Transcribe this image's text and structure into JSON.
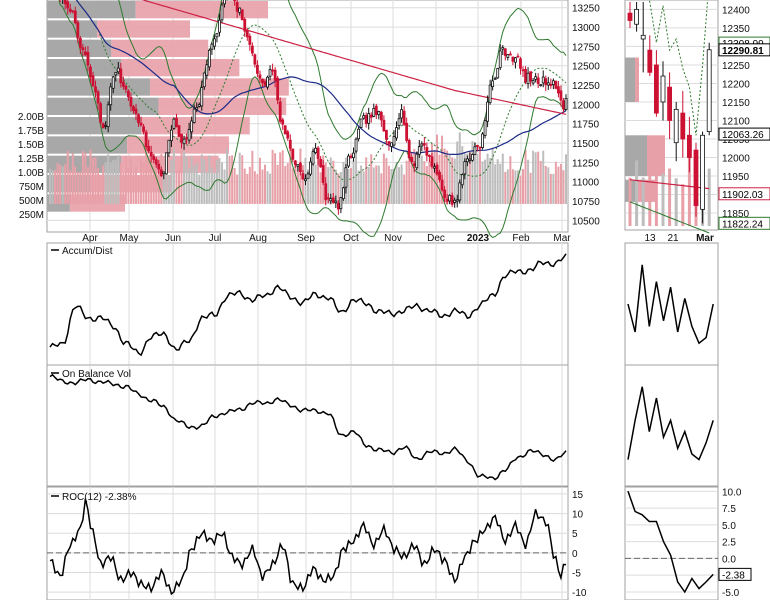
{
  "colors": {
    "up": "#111111",
    "down": "#cc1133",
    "bollinger": "#2f7a2f",
    "sma50": "#1c2a88",
    "sma200": "#cc2244",
    "vbp_up": "#a8a8a8",
    "vbp_down": "#e8a0a8",
    "volume": "#bdbdbd",
    "zero_line": "#666666"
  },
  "chart_data": [
    {
      "type": "line",
      "title": "",
      "subtype": "candlestick",
      "x_axis": {
        "months": [
          "Apr",
          "May",
          "Jun",
          "Jul",
          "Aug",
          "Sep",
          "Oct",
          "Nov",
          "Dec",
          "2023",
          "Feb",
          "Mar"
        ]
      },
      "y_axis": {
        "ticks": [
          10500,
          10750,
          11000,
          11250,
          11500,
          11750,
          12000,
          12250,
          12500,
          12750,
          13000,
          13250
        ],
        "range": [
          10350,
          13350
        ]
      },
      "volume_axis": {
        "ticks": [
          "250M",
          "500M",
          "750M",
          "1.00B",
          "1.25B",
          "1.50B",
          "1.75B",
          "2.00B"
        ]
      },
      "series": [],
      "overlays": [
        "bollinger-bands",
        "sma50",
        "sma200",
        "volume-by-price"
      ],
      "anchors": [
        [
          0,
          13600
        ],
        [
          7,
          13300
        ],
        [
          13,
          12700
        ],
        [
          17,
          12250
        ],
        [
          21,
          11700
        ],
        [
          26,
          12450
        ],
        [
          30,
          12200
        ],
        [
          34,
          11850
        ],
        [
          40,
          11350
        ],
        [
          44,
          11100
        ],
        [
          49,
          11750
        ],
        [
          53,
          11500
        ],
        [
          58,
          12000
        ],
        [
          64,
          12750
        ],
        [
          70,
          13450
        ],
        [
          75,
          13200
        ],
        [
          79,
          12750
        ],
        [
          84,
          12250
        ],
        [
          88,
          12450
        ],
        [
          92,
          11700
        ],
        [
          97,
          11250
        ],
        [
          101,
          11050
        ],
        [
          105,
          11400
        ],
        [
          110,
          10750
        ],
        [
          114,
          10700
        ],
        [
          119,
          11350
        ],
        [
          124,
          11800
        ],
        [
          129,
          11900
        ],
        [
          134,
          11500
        ],
        [
          139,
          11900
        ],
        [
          143,
          11200
        ],
        [
          147,
          11500
        ],
        [
          152,
          11200
        ],
        [
          156,
          10800
        ],
        [
          160,
          10750
        ],
        [
          165,
          11300
        ],
        [
          170,
          11500
        ],
        [
          175,
          12300
        ],
        [
          179,
          12700
        ],
        [
          184,
          12600
        ],
        [
          188,
          12350
        ],
        [
          193,
          12300
        ],
        [
          199,
          12300
        ],
        [
          203,
          11950
        ],
        [
          204,
          12130
        ]
      ]
    },
    {
      "type": "line",
      "title": "Accum/Dist",
      "series": [],
      "anchors": [
        [
          0,
          -30
        ],
        [
          5,
          -28
        ],
        [
          10,
          2
        ],
        [
          15,
          -8
        ],
        [
          20,
          -7
        ],
        [
          25,
          -14
        ],
        [
          30,
          -27
        ],
        [
          35,
          -35
        ],
        [
          40,
          -22
        ],
        [
          45,
          -20
        ],
        [
          50,
          -32
        ],
        [
          55,
          -25
        ],
        [
          60,
          -8
        ],
        [
          65,
          -5
        ],
        [
          70,
          9
        ],
        [
          75,
          12
        ],
        [
          80,
          6
        ],
        [
          85,
          10
        ],
        [
          90,
          16
        ],
        [
          95,
          9
        ],
        [
          100,
          4
        ],
        [
          105,
          11
        ],
        [
          110,
          8
        ],
        [
          115,
          -3
        ],
        [
          120,
          6
        ],
        [
          125,
          4
        ],
        [
          130,
          -3
        ],
        [
          135,
          -4
        ],
        [
          140,
          -2
        ],
        [
          145,
          2
        ],
        [
          150,
          -2
        ],
        [
          155,
          -6
        ],
        [
          160,
          -2
        ],
        [
          165,
          -6
        ],
        [
          170,
          2
        ],
        [
          175,
          10
        ],
        [
          180,
          25
        ],
        [
          185,
          29
        ],
        [
          190,
          29
        ],
        [
          195,
          36
        ],
        [
          200,
          34
        ],
        [
          204,
          40
        ]
      ]
    },
    {
      "type": "line",
      "title": "On Balance Vol",
      "series": [],
      "anchors": [
        [
          0,
          95
        ],
        [
          5,
          90
        ],
        [
          10,
          88
        ],
        [
          15,
          92
        ],
        [
          20,
          89
        ],
        [
          25,
          87
        ],
        [
          30,
          84
        ],
        [
          35,
          76
        ],
        [
          40,
          69
        ],
        [
          45,
          62
        ],
        [
          50,
          47
        ],
        [
          55,
          40
        ],
        [
          60,
          41
        ],
        [
          65,
          52
        ],
        [
          70,
          56
        ],
        [
          75,
          59
        ],
        [
          80,
          66
        ],
        [
          85,
          66
        ],
        [
          90,
          70
        ],
        [
          95,
          64
        ],
        [
          100,
          58
        ],
        [
          105,
          58
        ],
        [
          110,
          55
        ],
        [
          115,
          31
        ],
        [
          120,
          35
        ],
        [
          125,
          20
        ],
        [
          130,
          15
        ],
        [
          135,
          12
        ],
        [
          140,
          18
        ],
        [
          145,
          5
        ],
        [
          150,
          13
        ],
        [
          155,
          11
        ],
        [
          160,
          16
        ],
        [
          165,
          3
        ],
        [
          170,
          -14
        ],
        [
          175,
          -16
        ],
        [
          180,
          -7
        ],
        [
          185,
          7
        ],
        [
          190,
          14
        ],
        [
          195,
          10
        ],
        [
          200,
          4
        ],
        [
          204,
          12
        ]
      ]
    },
    {
      "type": "line",
      "title": "ROC(12) -2.38%",
      "y_axis": {
        "ticks": [
          15,
          10,
          5,
          0,
          -5,
          -10
        ],
        "range": [
          -12,
          16
        ]
      },
      "series": [],
      "anchors": [
        [
          0,
          -2
        ],
        [
          4,
          -6
        ],
        [
          8,
          2
        ],
        [
          12,
          6
        ],
        [
          14,
          13
        ],
        [
          17,
          5
        ],
        [
          20,
          -3
        ],
        [
          24,
          -1
        ],
        [
          28,
          -7
        ],
        [
          32,
          -5
        ],
        [
          36,
          -8
        ],
        [
          40,
          -9
        ],
        [
          44,
          -5
        ],
        [
          48,
          -10
        ],
        [
          52,
          -7
        ],
        [
          56,
          1
        ],
        [
          60,
          5
        ],
        [
          64,
          3
        ],
        [
          68,
          5
        ],
        [
          72,
          -1
        ],
        [
          76,
          -3
        ],
        [
          80,
          1
        ],
        [
          84,
          -6
        ],
        [
          88,
          -3
        ],
        [
          92,
          2
        ],
        [
          96,
          -8
        ],
        [
          100,
          -9
        ],
        [
          104,
          -4
        ],
        [
          108,
          -7
        ],
        [
          112,
          -6
        ],
        [
          116,
          1
        ],
        [
          120,
          3
        ],
        [
          124,
          7
        ],
        [
          128,
          2
        ],
        [
          132,
          6
        ],
        [
          136,
          1
        ],
        [
          140,
          -1
        ],
        [
          144,
          2
        ],
        [
          148,
          -3
        ],
        [
          152,
          1
        ],
        [
          156,
          -2
        ],
        [
          160,
          -7
        ],
        [
          164,
          -1
        ],
        [
          168,
          3
        ],
        [
          172,
          6
        ],
        [
          176,
          9
        ],
        [
          180,
          3
        ],
        [
          184,
          7
        ],
        [
          188,
          2
        ],
        [
          192,
          10
        ],
        [
          196,
          8
        ],
        [
          200,
          -2
        ],
        [
          202,
          -6
        ],
        [
          204,
          -2
        ]
      ]
    }
  ],
  "zoom": {
    "x_labels": [
      "13",
      "21",
      "Mar"
    ],
    "price_ticks": [
      12400,
      12350,
      12300,
      12250,
      12200,
      12150,
      12100,
      12050,
      12000,
      11950,
      11900,
      11850
    ],
    "price_range": [
      11815,
      12420
    ],
    "callouts": [
      "12308.99",
      "12290.81",
      "12063.26",
      "11902.03",
      "11822.24"
    ],
    "roc_ticks": [
      "10.0",
      "7.5",
      "5.0",
      "2.5",
      "0.0",
      "-2.5",
      "-5.0"
    ],
    "roc_range": [
      -6.2,
      10.2
    ],
    "roc_callout": "-2.38",
    "candles": [
      {
        "o": 12390,
        "h": 12420,
        "c": 12370,
        "l": 12350
      },
      {
        "o": 12360,
        "h": 12420,
        "c": 12400,
        "l": 12340
      },
      {
        "o": 12320,
        "h": 12420,
        "c": 12330,
        "l": 12230
      },
      {
        "o": 12290,
        "h": 12330,
        "c": 12230,
        "l": 12220
      },
      {
        "o": 12250,
        "h": 12290,
        "c": 12120,
        "l": 12110
      },
      {
        "o": 12150,
        "h": 12260,
        "c": 12220,
        "l": 12100
      },
      {
        "o": 12190,
        "h": 12230,
        "c": 12100,
        "l": 12050
      },
      {
        "o": 12040,
        "h": 12150,
        "c": 12130,
        "l": 11990
      },
      {
        "o": 12120,
        "h": 12180,
        "c": 12050,
        "l": 12000
      },
      {
        "o": 12060,
        "h": 12110,
        "c": 12000,
        "l": 11960
      },
      {
        "o": 12020,
        "h": 12040,
        "c": 11870,
        "l": 11840
      },
      {
        "o": 11860,
        "h": 12070,
        "c": 12060,
        "l": 11822
      },
      {
        "o": 12070,
        "h": 12310,
        "c": 12291,
        "l": 12060
      }
    ],
    "ad_values": [
      0.5,
      0.25,
      0.85,
      0.3,
      0.7,
      0.35,
      0.65,
      0.25,
      0.55,
      0.3,
      0.15,
      0.2,
      0.5
    ],
    "obv_values": [
      0.2,
      0.55,
      0.85,
      0.45,
      0.75,
      0.4,
      0.55,
      0.3,
      0.45,
      0.25,
      0.2,
      0.35,
      0.55
    ],
    "roc_values": [
      10.0,
      7.0,
      6.5,
      5.5,
      5.5,
      2.5,
      0.5,
      -3.5,
      -5.0,
      -3.0,
      -4.5,
      -3.5,
      -2.38
    ]
  }
}
